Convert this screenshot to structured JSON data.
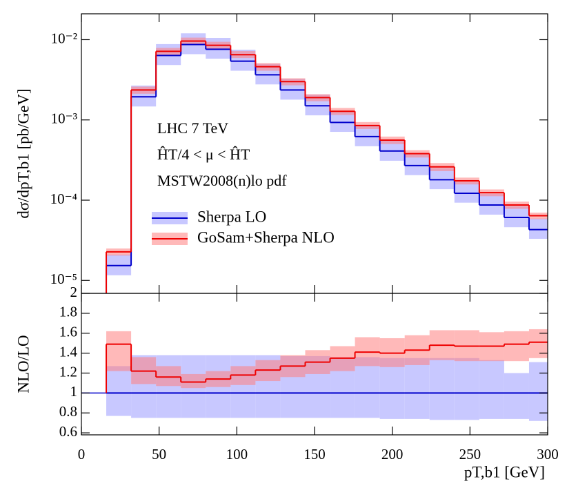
{
  "chart_data": [
    {
      "type": "histogram",
      "ylabel": "dσ/dpT,b1 [pb/GeV]",
      "annotations": [
        "LHC 7 TeV",
        "ĤT/4 < μ < ĤT",
        "MSTW2008(n)lo pdf"
      ],
      "bins": [
        16,
        32,
        48,
        64,
        80,
        96,
        112,
        128,
        144,
        160,
        176,
        192,
        208,
        224,
        240,
        256,
        272,
        288,
        300
      ],
      "xlim": [
        0,
        300
      ],
      "ylim": [
        6.9e-06,
        0.021
      ],
      "log_y": true,
      "yticks": [
        {
          "value": 1e-05,
          "label": "10⁻⁵"
        },
        {
          "value": 0.0001,
          "label": "10⁻⁴"
        },
        {
          "value": 0.001,
          "label": "10⁻³"
        },
        {
          "value": 0.01,
          "label": "10⁻²"
        }
      ],
      "series": [
        {
          "name": "Sherpa LO",
          "color": "#0000cc",
          "band_color": "#c8c8ff",
          "values": [
            1.53e-05,
            0.00194,
            0.00635,
            0.0087,
            0.0076,
            0.0054,
            0.00365,
            0.00236,
            0.0015,
            0.00093,
            0.00062,
            0.00041,
            0.00027,
            0.00018,
            0.000122,
            8.7e-05,
            6.1e-05,
            4.3e-05
          ],
          "band_low": [
            1.16e-05,
            0.00147,
            0.00483,
            0.0066,
            0.0058,
            0.0041,
            0.00277,
            0.00179,
            0.00114,
            0.00071,
            0.00047,
            0.00031,
            0.000205,
            0.000137,
            9.3e-05,
            6.6e-05,
            4.6e-05,
            3.3e-05
          ],
          "band_high": [
            2.1e-05,
            0.00268,
            0.0088,
            0.012,
            0.0105,
            0.0075,
            0.005,
            0.00326,
            0.00207,
            0.00128,
            0.00086,
            0.00057,
            0.00037,
            0.00025,
            0.000168,
            0.00012,
            8.4e-05,
            5.9e-05
          ]
        },
        {
          "name": "GoSam+Sherpa NLO",
          "color": "#ee0000",
          "band_color": "#ff8080",
          "values": [
            2.27e-05,
            0.00236,
            0.00715,
            0.0096,
            0.0085,
            0.0065,
            0.0046,
            0.003,
            0.0019,
            0.00128,
            0.00085,
            0.00056,
            0.00038,
            0.00026,
            0.000174,
            0.000124,
            8.7e-05,
            6.4e-05
          ],
          "band_low": [
            2.04e-05,
            0.00212,
            0.0064,
            0.0086,
            0.0077,
            0.0059,
            0.0041,
            0.0027,
            0.00171,
            0.00115,
            0.00077,
            0.0005,
            0.00034,
            0.00023,
            0.000157,
            0.000112,
            7.8e-05,
            5.8e-05
          ],
          "band_high": [
            2.5e-05,
            0.0026,
            0.0079,
            0.0106,
            0.0094,
            0.0072,
            0.0051,
            0.0033,
            0.00209,
            0.00141,
            0.00094,
            0.00062,
            0.00042,
            0.00029,
            0.000191,
            0.000136,
            9.6e-05,
            7e-05
          ]
        }
      ]
    },
    {
      "type": "histogram",
      "ylabel": "NLO/LO",
      "xlabel": "pT,b1 [GeV]",
      "bins": [
        16,
        32,
        48,
        64,
        80,
        96,
        112,
        128,
        144,
        160,
        176,
        192,
        208,
        224,
        240,
        256,
        272,
        288,
        300
      ],
      "xlim": [
        0,
        300
      ],
      "xticks": [
        0,
        50,
        100,
        150,
        200,
        250,
        300
      ],
      "ylim": [
        0.58,
        2.0
      ],
      "yticks": [
        0.6,
        0.8,
        1,
        1.2,
        1.4,
        1.6,
        1.8,
        2
      ],
      "hline": 1,
      "series": [
        {
          "name": "Sherpa LO",
          "color": "#0000cc",
          "band_color": "#c8c8ff",
          "values": [
            1,
            1,
            1,
            1,
            1,
            1,
            1,
            1,
            1,
            1,
            1,
            1,
            1,
            1,
            1,
            1,
            1,
            1
          ],
          "band_low": [
            0.77,
            0.75,
            0.75,
            0.75,
            0.75,
            0.75,
            0.75,
            0.75,
            0.75,
            0.75,
            0.75,
            0.74,
            0.74,
            0.73,
            0.73,
            0.74,
            0.74,
            0.72
          ],
          "band_high": [
            1.27,
            1.38,
            1.38,
            1.38,
            1.38,
            1.38,
            1.38,
            1.37,
            1.37,
            1.36,
            1.36,
            1.35,
            1.35,
            1.35,
            1.35,
            1.33,
            1.2,
            1.31
          ]
        },
        {
          "name": "GoSam+Sherpa NLO",
          "color": "#ee0000",
          "band_color": "#ff8080",
          "values": [
            1.49,
            1.22,
            1.16,
            1.11,
            1.14,
            1.18,
            1.23,
            1.27,
            1.31,
            1.35,
            1.41,
            1.4,
            1.43,
            1.48,
            1.47,
            1.47,
            1.49,
            1.51
          ],
          "band_low": [
            1.22,
            1.09,
            1.07,
            1.05,
            1.06,
            1.08,
            1.12,
            1.16,
            1.19,
            1.22,
            1.27,
            1.26,
            1.28,
            1.33,
            1.32,
            1.32,
            1.32,
            1.35
          ],
          "band_high": [
            1.62,
            1.36,
            1.27,
            1.19,
            1.22,
            1.27,
            1.33,
            1.38,
            1.43,
            1.47,
            1.56,
            1.55,
            1.58,
            1.63,
            1.63,
            1.61,
            1.62,
            1.64
          ]
        }
      ]
    }
  ]
}
